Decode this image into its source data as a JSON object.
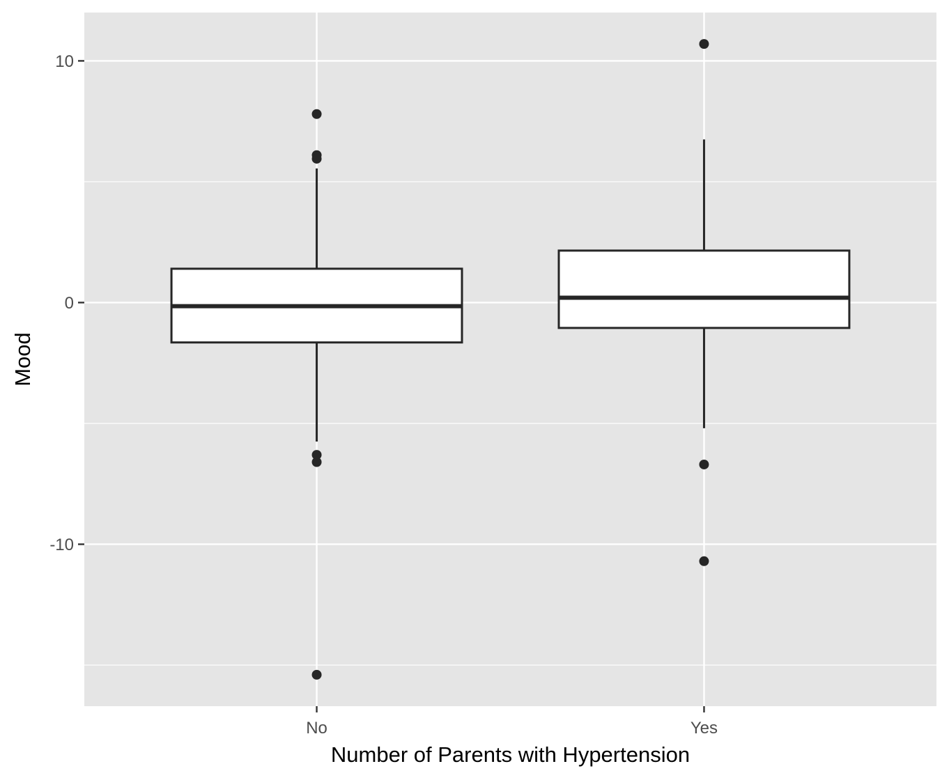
{
  "chart_data": {
    "type": "boxplot",
    "title": "",
    "xlabel": "Number of Parents with Hypertension",
    "ylabel": "Mood",
    "categories": [
      "No",
      "Yes"
    ],
    "ylim": [
      -16.7,
      12.0
    ],
    "y_ticks": [
      -10,
      0,
      10
    ],
    "y_tick_labels": [
      "-10",
      "0",
      "10"
    ],
    "grid": true,
    "boxes": [
      {
        "category": "No",
        "lower_whisker": -5.75,
        "q1": -1.65,
        "median": -0.15,
        "q3": 1.4,
        "upper_whisker": 5.55,
        "outliers": [
          7.8,
          6.1,
          5.95,
          -6.3,
          -6.6,
          -15.4
        ]
      },
      {
        "category": "Yes",
        "lower_whisker": -5.2,
        "q1": -1.05,
        "median": 0.2,
        "q3": 2.15,
        "upper_whisker": 6.75,
        "outliers": [
          10.7,
          -6.7,
          -10.7
        ]
      }
    ],
    "colors": {
      "panel_background": "#e5e5e5",
      "grid": "#ffffff",
      "box_fill": "#ffffff",
      "box_stroke": "#262626",
      "point": "#262626",
      "tick_label": "#4d4d4d",
      "axis_title": "#000000"
    }
  }
}
